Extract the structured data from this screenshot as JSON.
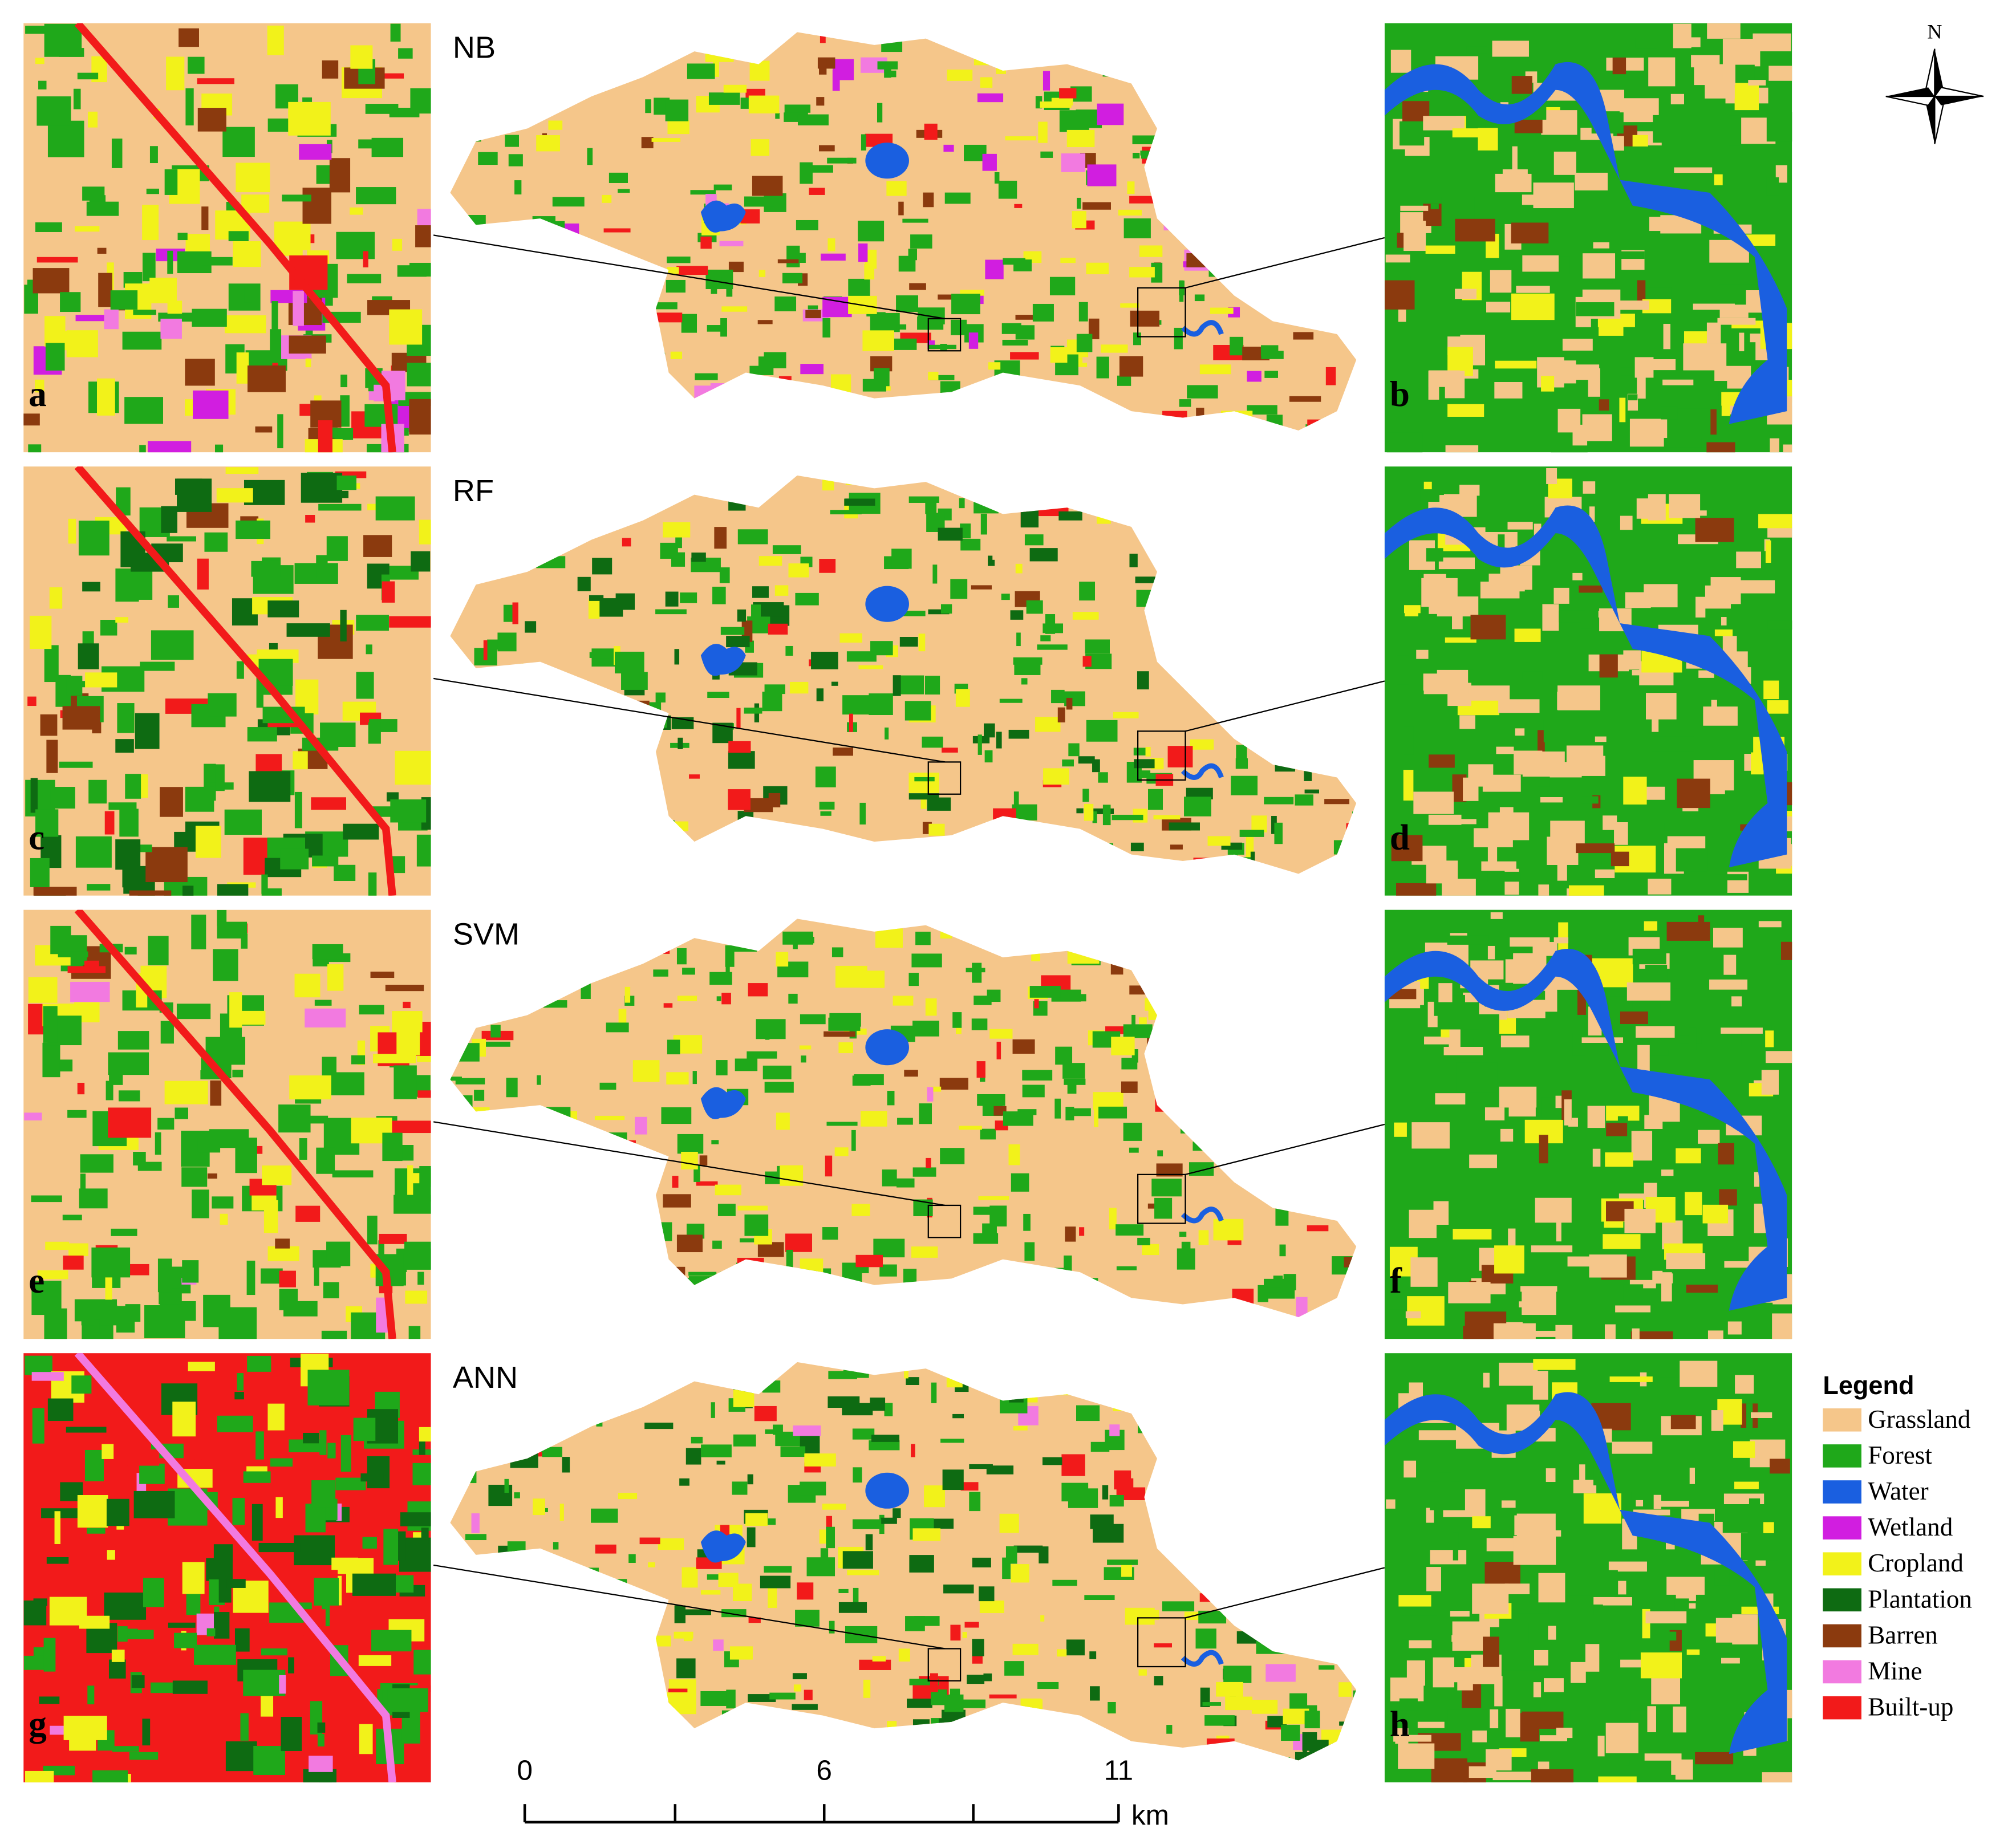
{
  "panels": [
    {
      "label": "NB",
      "insets": [
        "a",
        "b"
      ]
    },
    {
      "label": "RF",
      "insets": [
        "c",
        "d"
      ]
    },
    {
      "label": "SVM",
      "insets": [
        "e",
        "f"
      ]
    },
    {
      "label": "ANN",
      "insets": [
        "g",
        "h"
      ]
    }
  ],
  "legend": {
    "title": "Legend",
    "items": [
      {
        "name": "Grassland",
        "color": "#f5c68a"
      },
      {
        "name": "Forest",
        "color": "#1fa81a"
      },
      {
        "name": "Water",
        "color": "#1a5fe0"
      },
      {
        "name": "Wetland",
        "color": "#d11ee0"
      },
      {
        "name": "Cropland",
        "color": "#f2f21a"
      },
      {
        "name": "Plantation",
        "color": "#0e6b12"
      },
      {
        "name": "Barren",
        "color": "#8b3a0e"
      },
      {
        "name": "Mine",
        "color": "#f27ae0"
      },
      {
        "name": "Built-up",
        "color": "#f21a1a"
      }
    ]
  },
  "scale_bar": {
    "ticks": [
      0,
      6,
      11
    ],
    "unit": "km"
  },
  "north": "N"
}
